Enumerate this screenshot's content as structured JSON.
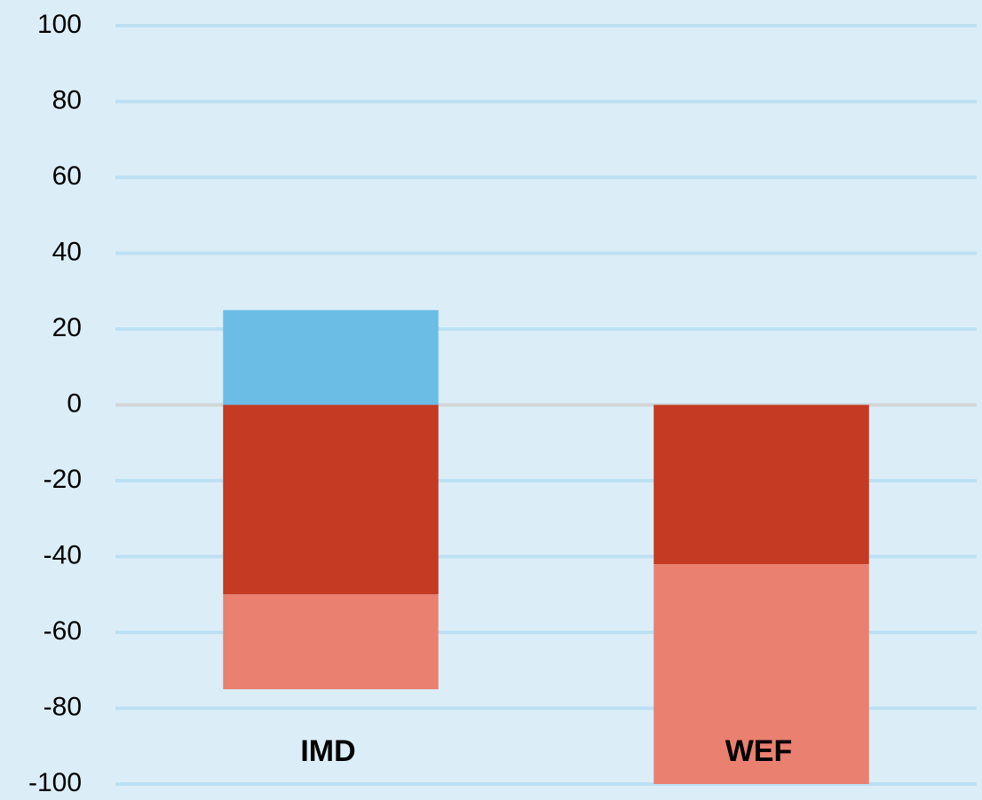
{
  "chart_data": {
    "type": "stacked_bar",
    "categories": [
      "IMD",
      "WEF"
    ],
    "series": [
      {
        "color": "#6bbde6",
        "values": [
          25,
          0
        ]
      },
      {
        "color": "#c43a22",
        "values": [
          -50,
          -42
        ]
      },
      {
        "color": "#e98070",
        "values": [
          -25,
          -58
        ]
      }
    ],
    "ylim": [
      -100,
      100
    ],
    "yticks": [
      -100,
      -80,
      -60,
      -40,
      -20,
      0,
      20,
      40,
      60,
      80,
      100
    ],
    "grid": true
  }
}
